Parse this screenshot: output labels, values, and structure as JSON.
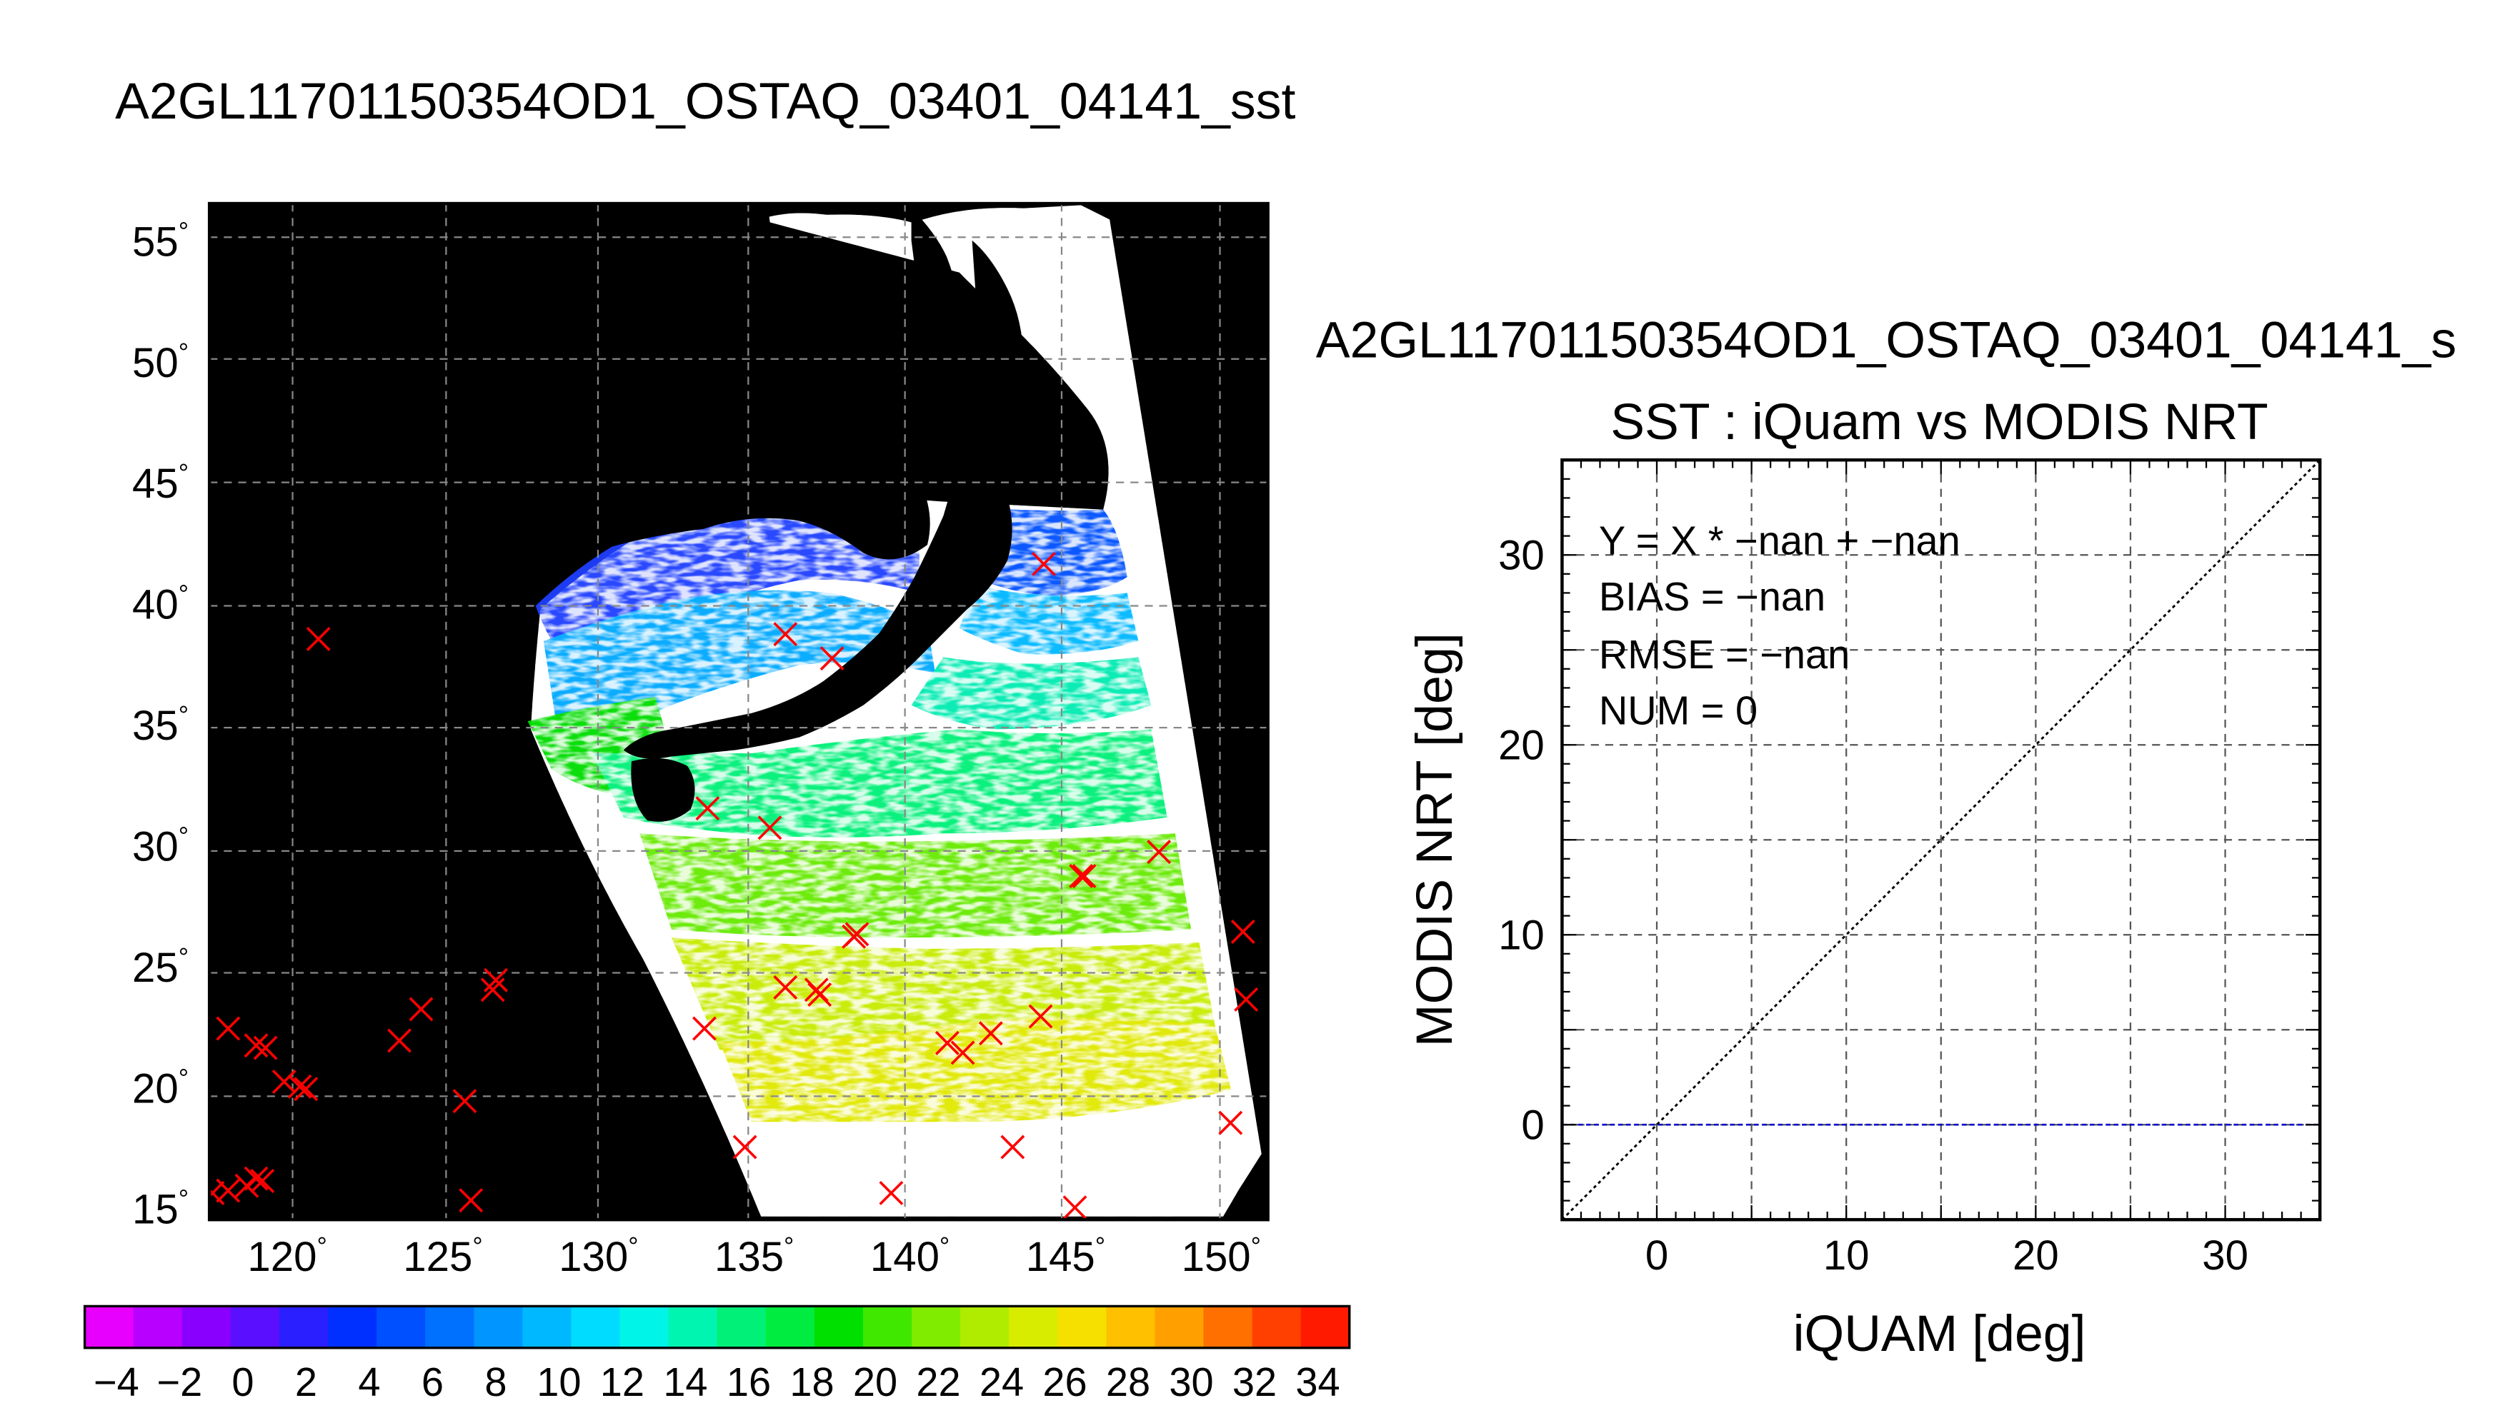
{
  "main_title": "A2GL11701150354OD1_OSTAQ_03401_04141_sst",
  "map": {
    "lat_ticks": [
      15,
      20,
      25,
      30,
      35,
      40,
      45,
      50,
      55
    ],
    "lon_ticks": [
      120,
      125,
      130,
      135,
      140,
      145,
      150
    ],
    "lon_range": [
      117.5,
      151.5
    ],
    "lat_range": [
      14.5,
      56.5
    ],
    "degree_symbol": "°",
    "background_color": "#000000",
    "marker_color": "#ff0000",
    "buoy_markers": [
      [
        121,
        38.5
      ],
      [
        136,
        38.7
      ],
      [
        137.5,
        37.7
      ],
      [
        133.5,
        31.5
      ],
      [
        135.5,
        30.7
      ],
      [
        148,
        29.7
      ],
      [
        145.5,
        28.7
      ],
      [
        145.6,
        28.7
      ],
      [
        138.2,
        26.2
      ],
      [
        138.3,
        26.3
      ],
      [
        150.7,
        26.4
      ],
      [
        150.8,
        23.6
      ],
      [
        126.7,
        24.4
      ],
      [
        126.6,
        24
      ],
      [
        124.3,
        23.2
      ],
      [
        123.6,
        21.9
      ],
      [
        136,
        24.1
      ],
      [
        137,
        24
      ],
      [
        137.1,
        23.8
      ],
      [
        144.2,
        22.9
      ],
      [
        142.6,
        22.2
      ],
      [
        141.2,
        21.8
      ],
      [
        141.7,
        21.4
      ],
      [
        133.4,
        22.4
      ],
      [
        118.1,
        22.4
      ],
      [
        119,
        21.7
      ],
      [
        119.3,
        21.6
      ],
      [
        119.9,
        20.2
      ],
      [
        120.4,
        20
      ],
      [
        120.6,
        19.9
      ],
      [
        125.7,
        19.4
      ],
      [
        150.3,
        18.5
      ],
      [
        134.7,
        17.5
      ],
      [
        143.3,
        17.5
      ],
      [
        117.6,
        15.6
      ],
      [
        118.1,
        15.7
      ],
      [
        118.7,
        15.9
      ],
      [
        119,
        16.2
      ],
      [
        119.2,
        16.1
      ],
      [
        125.9,
        15.3
      ],
      [
        139.4,
        15.6
      ],
      [
        145.3,
        15
      ],
      [
        144.3,
        41.6
      ]
    ]
  },
  "colorbar": {
    "min": -5,
    "max": 35,
    "step": 2,
    "tick_labels": [
      "−4",
      "−2",
      "0",
      "2",
      "4",
      "6",
      "8",
      "10",
      "12",
      "14",
      "16",
      "18",
      "20",
      "22",
      "24",
      "26",
      "28",
      "30",
      "32",
      "34"
    ],
    "tick_values": [
      -4,
      -2,
      0,
      2,
      4,
      6,
      8,
      10,
      12,
      14,
      16,
      18,
      20,
      22,
      24,
      26,
      28,
      30,
      32,
      34
    ],
    "colors": [
      "#e800ff",
      "#b700ff",
      "#8a00ff",
      "#5a10ff",
      "#2a20ff",
      "#0030ff",
      "#0050ff",
      "#0070ff",
      "#0095ff",
      "#00b8ff",
      "#00dcff",
      "#00f5e8",
      "#00f5b0",
      "#00f078",
      "#00ec40",
      "#00e000",
      "#40e800",
      "#80ec00",
      "#b0ec00",
      "#d8ec00",
      "#f5e000",
      "#ffc000",
      "#ffa000",
      "#ff7000",
      "#ff4000",
      "#ff1a00"
    ]
  },
  "scatter": {
    "title_run": "A2GL11701150354OD1_OSTAQ_03401_04141_s",
    "title": "SST : iQuam vs MODIS NRT",
    "stats": [
      "Y = X * −nan + −nan",
      "BIAS = −nan",
      "RMSE = −nan",
      "NUM = 0"
    ]
  },
  "chart_data": {
    "type": "scatter",
    "title": "SST : iQuam vs MODIS NRT",
    "xlabel": "iQUAM [deg]",
    "ylabel": "MODIS NRT [deg]",
    "xlim": [
      -5,
      35
    ],
    "ylim": [
      -5,
      35
    ],
    "xticks": [
      0,
      10,
      20,
      30
    ],
    "yticks": [
      0,
      10,
      20,
      30
    ],
    "grid": true,
    "points": [],
    "one_to_one_line": {
      "x": [
        -5,
        35
      ],
      "y": [
        -5,
        35
      ],
      "color": "#000000",
      "style": "dotted"
    },
    "zero_line": {
      "y": 0,
      "color": "#0000cc",
      "style": "dashed"
    }
  }
}
